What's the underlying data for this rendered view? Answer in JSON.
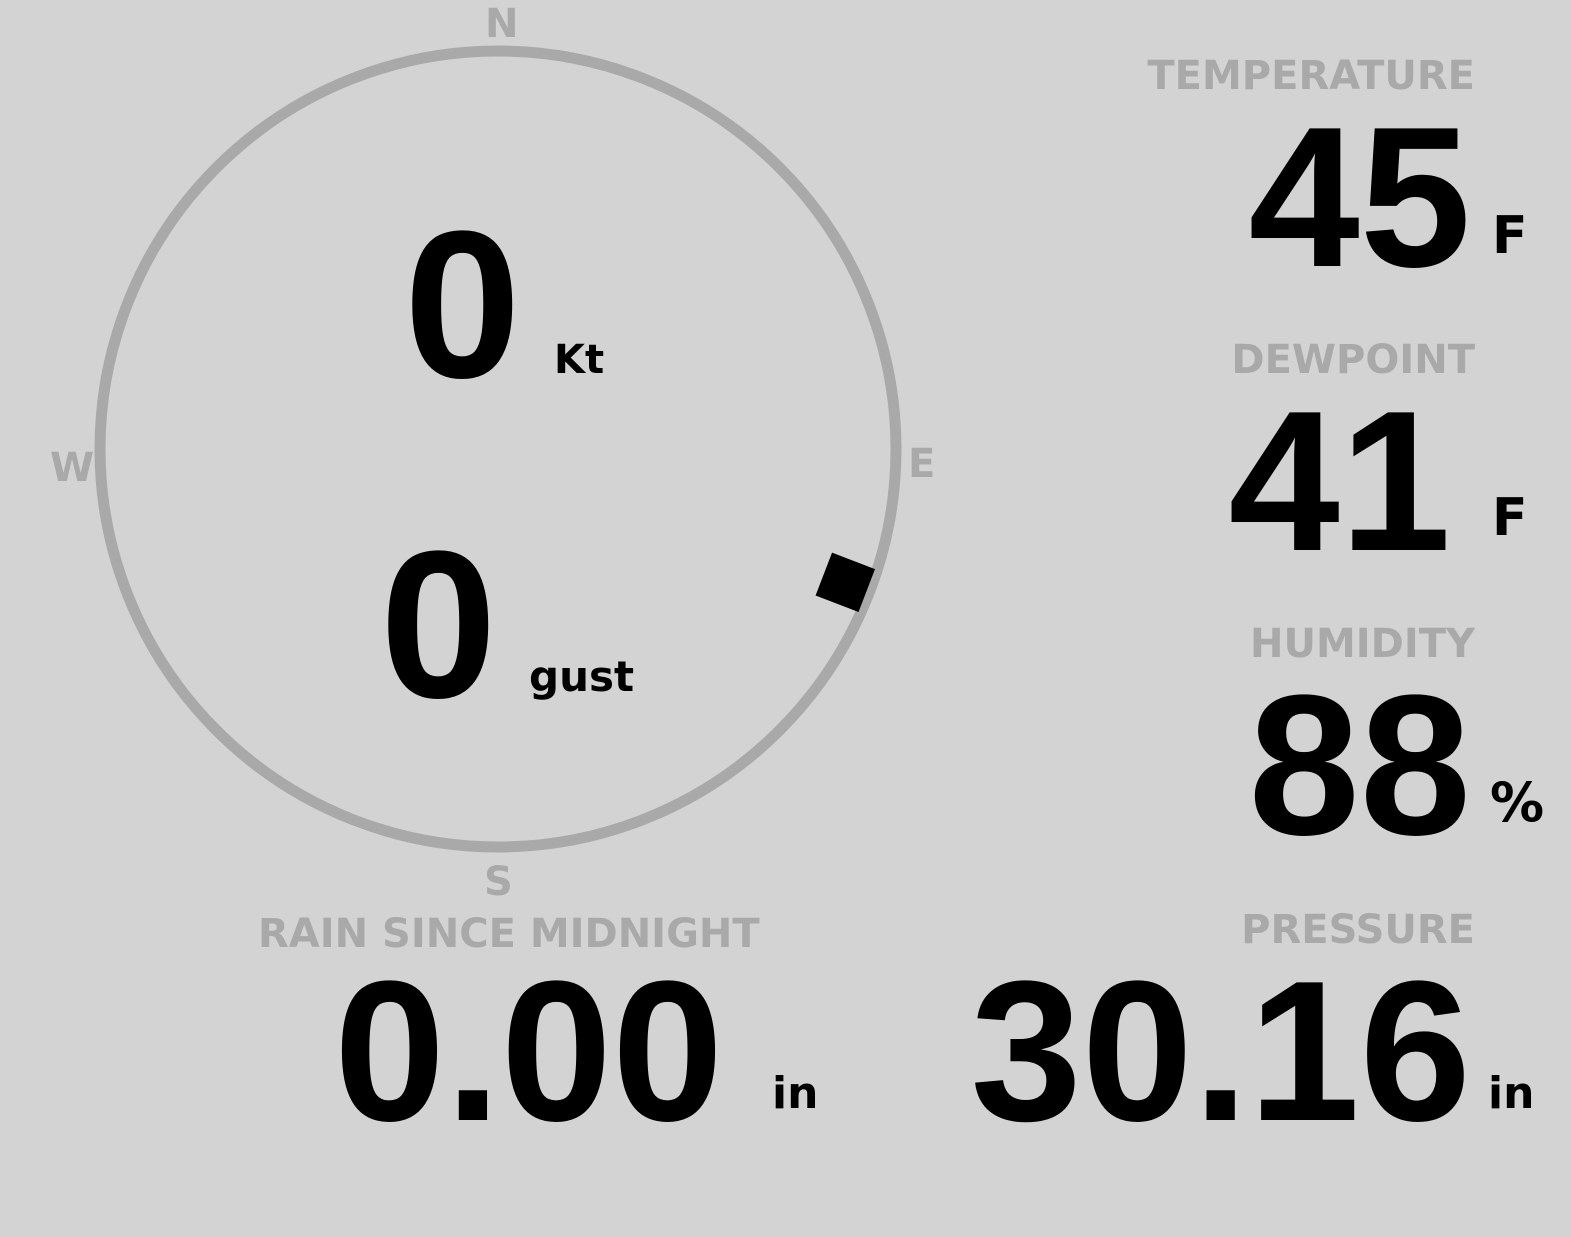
{
  "compass": {
    "north": "N",
    "east": "E",
    "south": "S",
    "west": "W",
    "wind_direction_deg": 111,
    "ring_color": "#a9a9a9"
  },
  "wind": {
    "speed": "0",
    "speed_unit": "Kt",
    "gust": "0",
    "gust_unit": "gust"
  },
  "temperature": {
    "label": "TEMPERATURE",
    "value": "45",
    "unit": "F"
  },
  "dewpoint": {
    "label": "DEWPOINT",
    "value": "41",
    "unit": "F"
  },
  "humidity": {
    "label": "HUMIDITY",
    "value": "88",
    "unit": "%"
  },
  "rain": {
    "label": "RAIN SINCE MIDNIGHT",
    "value": "0.00",
    "unit": "in"
  },
  "pressure": {
    "label": "PRESSURE",
    "value": "30.16",
    "unit": "in"
  },
  "colors": {
    "background": "#d3d3d3",
    "label": "#a9a9a9",
    "value": "#000000"
  }
}
